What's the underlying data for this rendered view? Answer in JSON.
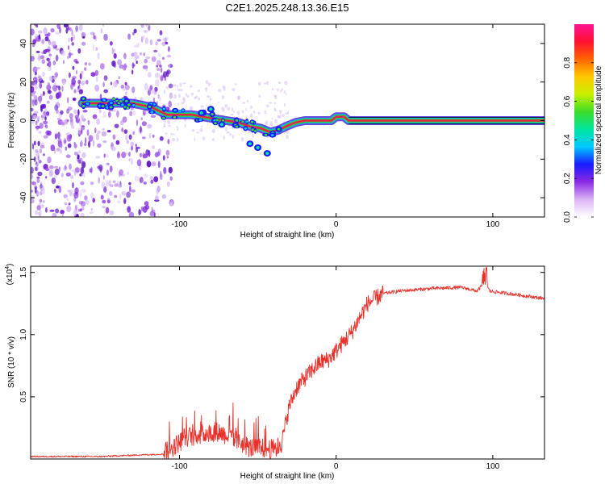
{
  "title": "C2E1.2025.248.13.36.E15",
  "colors": {
    "snr_line": "#e8312a",
    "ridge_core": "#e8214a",
    "ridge_halo": "#2fd13a",
    "noise": "#8a2be2",
    "frame": "#000000"
  },
  "spectrogram": {
    "type": "heatmap",
    "xlabel": "Height of straight line (km)",
    "ylabel": "Frequency (Hz)",
    "xlim": [
      -195,
      133
    ],
    "ylim": [
      -50,
      50
    ],
    "xticks": [
      {
        "value": -100,
        "label": "-100"
      },
      {
        "value": 0,
        "label": "0"
      },
      {
        "value": 100,
        "label": "100"
      }
    ],
    "yticks": [
      {
        "value": 40,
        "label": "40"
      },
      {
        "value": 20,
        "label": "20"
      },
      {
        "value": 0,
        "label": "0"
      },
      {
        "value": -20,
        "label": "-20"
      },
      {
        "value": -40,
        "label": "-40"
      }
    ],
    "ridge": [
      [
        -162,
        9
      ],
      [
        -150,
        9
      ],
      [
        -140,
        9
      ],
      [
        -130,
        9
      ],
      [
        -118,
        7
      ],
      [
        -108,
        3
      ],
      [
        -100,
        3
      ],
      [
        -92,
        3
      ],
      [
        -85,
        2
      ],
      [
        -78,
        1
      ],
      [
        -70,
        0
      ],
      [
        -62,
        -1
      ],
      [
        -55,
        -3
      ],
      [
        -48,
        -4
      ],
      [
        -42,
        -6
      ],
      [
        -37,
        -5
      ],
      [
        -32,
        -3
      ],
      [
        -26,
        -1
      ],
      [
        -20,
        0
      ],
      [
        -10,
        0
      ],
      [
        -3,
        0
      ],
      [
        0,
        2
      ],
      [
        5,
        2
      ],
      [
        8,
        0
      ],
      [
        133,
        0
      ]
    ],
    "blobs": [
      [
        -55,
        -12
      ],
      [
        -50,
        -14
      ],
      [
        -44,
        -17
      ],
      [
        -86,
        4
      ],
      [
        -80,
        6
      ],
      [
        -73,
        -2
      ]
    ]
  },
  "colorbar": {
    "label": "Normalized spectral amplitude",
    "range": [
      0,
      1
    ],
    "ticks": [
      {
        "value": 0.0,
        "label": "0.0"
      },
      {
        "value": 0.2,
        "label": "0.2"
      },
      {
        "value": 0.4,
        "label": "0.4"
      },
      {
        "value": 0.6,
        "label": "0.6"
      },
      {
        "value": 0.8,
        "label": "0.8"
      }
    ],
    "stops": [
      "#ffffff",
      "#dcb4f5",
      "#8a2be2",
      "#1a1aff",
      "#00c8ff",
      "#00e6a0",
      "#3cdc28",
      "#c8f000",
      "#ffc800",
      "#ff6400",
      "#ff1030",
      "#ff1493"
    ]
  },
  "chart_data": {
    "type": "line",
    "title": "C2E1.2025.248.13.36.E15",
    "xlabel": "Height of straight line (km)",
    "ylabel": "SNR (10 * v/v)",
    "scale_label": "(x10",
    "scale_exp": "4",
    "scale_close": ")",
    "xlim": [
      -195,
      133
    ],
    "ylim": [
      0,
      15500
    ],
    "xticks": [
      {
        "value": -100,
        "label": "-100"
      },
      {
        "value": 0,
        "label": "0"
      },
      {
        "value": 100,
        "label": "100"
      }
    ],
    "yticks": [
      {
        "value": 5000,
        "label": "0.5"
      },
      {
        "value": 10000,
        "label": "1.0"
      },
      {
        "value": 15000,
        "label": "1.5"
      }
    ],
    "series": [
      {
        "name": "SNR",
        "x": [
          -195,
          -150,
          -110,
          -105,
          -95,
          -85,
          -75,
          -65,
          -55,
          -40,
          -35,
          -33,
          -30,
          -25,
          -20,
          -15,
          -10,
          -5,
          0,
          10,
          20,
          30,
          40,
          60,
          80,
          90,
          95,
          98,
          110,
          133
        ],
        "y": [
          200,
          200,
          400,
          900,
          1800,
          2000,
          2200,
          1600,
          900,
          800,
          1100,
          2400,
          4200,
          5800,
          6500,
          7200,
          7800,
          8000,
          8700,
          10200,
          12500,
          13300,
          13500,
          13700,
          13800,
          13500,
          14200,
          13500,
          13300,
          12900
        ]
      }
    ]
  }
}
